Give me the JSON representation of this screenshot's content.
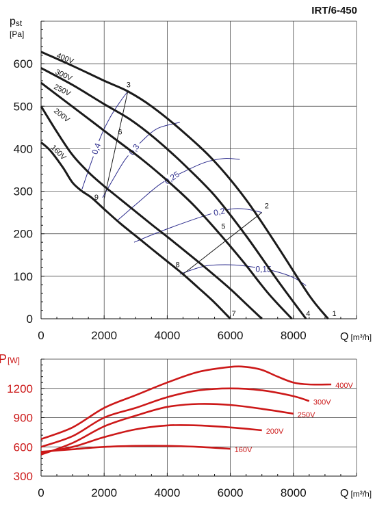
{
  "model": "IRT/6-450",
  "chart_data": [
    {
      "type": "line",
      "ylabel_main": "p",
      "ylabel_sub": "st",
      "ylabel_unit": "[Pa]",
      "xlabel": "Q",
      "xlabel_unit": "[m³/h]",
      "xlim": [
        0,
        10000
      ],
      "ylim": [
        0,
        700
      ],
      "x_ticks": [
        0,
        2000,
        4000,
        6000,
        8000
      ],
      "y_ticks": [
        0,
        100,
        200,
        300,
        400,
        500,
        600
      ],
      "grid": true,
      "series": [
        {
          "name": "400V",
          "x": [
            0,
            1000,
            2000,
            2750,
            3500,
            4500,
            5500,
            6500,
            7500,
            8500,
            9100
          ],
          "y": [
            628,
            595,
            560,
            535,
            500,
            440,
            370,
            280,
            170,
            55,
            0
          ]
        },
        {
          "name": "300V",
          "x": [
            0,
            1000,
            2000,
            2800,
            3600,
            4500,
            5500,
            6500,
            7500,
            8400
          ],
          "y": [
            590,
            550,
            505,
            470,
            425,
            365,
            290,
            195,
            90,
            0
          ]
        },
        {
          "name": "250V",
          "x": [
            0,
            800,
            1600,
            2400,
            3200,
            4000,
            4800,
            5600,
            6400,
            7200,
            7950
          ],
          "y": [
            555,
            510,
            465,
            420,
            375,
            325,
            270,
            205,
            135,
            60,
            0
          ]
        },
        {
          "name": "200V",
          "x": [
            0,
            500,
            1000,
            1500,
            2000,
            2500,
            3000,
            3500,
            4000,
            4500,
            5000,
            5500,
            6000,
            6500,
            7000
          ],
          "y": [
            500,
            440,
            385,
            345,
            312,
            282,
            252,
            222,
            193,
            163,
            133,
            102,
            70,
            35,
            0
          ]
        },
        {
          "name": "160V",
          "x": [
            0,
            300,
            700,
            1000,
            1300,
            1600,
            2000,
            2500,
            3000,
            3500,
            4000,
            4500,
            5000,
            5500,
            6000
          ],
          "y": [
            415,
            395,
            355,
            320,
            300,
            285,
            258,
            225,
            195,
            165,
            135,
            105,
            72,
            38,
            0
          ]
        }
      ],
      "efficiency_lines": [
        {
          "label": "0,4",
          "x": [
            1300,
            1600,
            1900,
            2200,
            2500,
            2750
          ],
          "y": [
            305,
            370,
            430,
            475,
            510,
            535
          ]
        },
        {
          "label": "0,3",
          "x": [
            1950,
            2300,
            2700,
            3200,
            3700,
            4400
          ],
          "y": [
            285,
            330,
            378,
            418,
            448,
            462
          ]
        },
        {
          "label": "0,25",
          "x": [
            2400,
            3100,
            3800,
            4500,
            5200,
            5800,
            6300
          ],
          "y": [
            230,
            275,
            318,
            345,
            368,
            377,
            375
          ]
        },
        {
          "label": "0,2",
          "x": [
            2950,
            3700,
            4500,
            5300,
            6000,
            6500,
            7000
          ],
          "y": [
            180,
            203,
            225,
            245,
            258,
            258,
            250
          ]
        },
        {
          "label": "0,15",
          "x": [
            4400,
            5200,
            6000,
            6700,
            7400,
            8000,
            8400
          ],
          "y": [
            105,
            124,
            127,
            122,
            112,
            97,
            78
          ]
        }
      ],
      "operating_lines": [
        {
          "x": [
            2000,
            2750
          ],
          "y": [
            282,
            535
          ]
        },
        {
          "x": [
            2000,
            4500
          ],
          "y": [
            256,
            105
          ]
        },
        {
          "x": [
            4500,
            7000
          ],
          "y": [
            105,
            250
          ]
        },
        {
          "x": [
            2000,
            2000
          ],
          "y": [
            282,
            256
          ]
        }
      ],
      "points": [
        {
          "label": "1",
          "x": 9100,
          "y": 0
        },
        {
          "label": "2",
          "x": 7000,
          "y": 250
        },
        {
          "label": "3",
          "x": 2750,
          "y": 535
        },
        {
          "label": "4",
          "x": 8400,
          "y": 0
        },
        {
          "label": "5",
          "x": 5800,
          "y": 205
        },
        {
          "label": "6",
          "x": 2350,
          "y": 440
        },
        {
          "label": "7",
          "x": 6000,
          "y": 0
        },
        {
          "label": "8",
          "x": 4350,
          "y": 118
        },
        {
          "label": "9",
          "x": 1950,
          "y": 280
        }
      ]
    },
    {
      "type": "line",
      "ylabel_main": "P",
      "ylabel_unit": "[W]",
      "xlabel": "Q",
      "xlabel_unit": "[m³/h]",
      "xlim": [
        0,
        10000
      ],
      "ylim": [
        300,
        1500
      ],
      "x_ticks": [
        0,
        2000,
        4000,
        6000,
        8000
      ],
      "y_ticks": [
        300,
        600,
        900,
        1200
      ],
      "grid": true,
      "series": [
        {
          "name": "400V",
          "x": [
            0,
            1000,
            2000,
            3000,
            4000,
            5000,
            6000,
            6500,
            7000,
            7500,
            8000,
            8500,
            9200
          ],
          "y": [
            680,
            800,
            1000,
            1130,
            1260,
            1370,
            1420,
            1420,
            1390,
            1320,
            1260,
            1240,
            1240
          ]
        },
        {
          "name": "300V",
          "x": [
            0,
            1000,
            2000,
            3000,
            4000,
            5000,
            6000,
            7000,
            8000,
            8500
          ],
          "y": [
            600,
            710,
            900,
            1000,
            1110,
            1180,
            1200,
            1180,
            1120,
            1070
          ]
        },
        {
          "name": "250V",
          "x": [
            0,
            1000,
            2000,
            3000,
            4000,
            5000,
            6000,
            7000,
            8000
          ],
          "y": [
            520,
            640,
            810,
            920,
            1010,
            1040,
            1030,
            990,
            940
          ]
        },
        {
          "name": "200V",
          "x": [
            0,
            1000,
            2000,
            3000,
            4000,
            5000,
            6000,
            7000
          ],
          "y": [
            540,
            600,
            700,
            780,
            820,
            820,
            800,
            770
          ]
        },
        {
          "name": "160V",
          "x": [
            0,
            1000,
            2000,
            3000,
            4000,
            5000,
            6000
          ],
          "y": [
            550,
            575,
            600,
            610,
            610,
            600,
            580
          ]
        }
      ]
    }
  ]
}
